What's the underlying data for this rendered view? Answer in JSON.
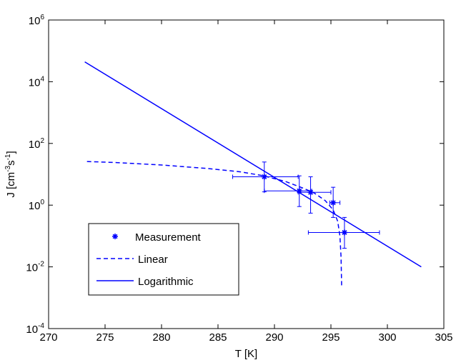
{
  "chart_data": {
    "type": "line",
    "xlabel": "T [K]",
    "ylabel": {
      "base": "J [cm",
      "exp1": "-3",
      "mid": "s",
      "exp2": "-1",
      "end": "]"
    },
    "xlim": [
      270,
      305
    ],
    "ylim": [
      0.0001,
      1000000
    ],
    "yscale": "log",
    "xticks": [
      "270",
      "275",
      "280",
      "285",
      "290",
      "295",
      "300",
      "305"
    ],
    "yticks": [
      {
        "base": "10",
        "exp": "-4"
      },
      {
        "base": "10",
        "exp": "-2"
      },
      {
        "base": "10",
        "exp": "0"
      },
      {
        "base": "10",
        "exp": "2"
      },
      {
        "base": "10",
        "exp": "4"
      },
      {
        "base": "10",
        "exp": "6"
      }
    ],
    "grid": false,
    "legend_position": "bottom-left",
    "color": "#0000ff",
    "series": [
      {
        "name": "Measurement",
        "style": "markers-errorbars",
        "points": [
          {
            "x": 289.1,
            "y": 8.3,
            "xerr": [
              286.3,
              292.1
            ],
            "yerr": [
              2.7,
              25
            ]
          },
          {
            "x": 292.2,
            "y": 2.9,
            "xerr": [
              289.1,
              293.3
            ],
            "yerr": [
              0.9,
              8.9
            ]
          },
          {
            "x": 293.2,
            "y": 2.6,
            "xerr": [
              292.1,
              295.0
            ],
            "yerr": [
              0.55,
              8.3
            ]
          },
          {
            "x": 295.2,
            "y": 1.2,
            "xerr": [
              294.9,
              295.8
            ],
            "yerr": [
              0.4,
              3.8
            ]
          },
          {
            "x": 296.2,
            "y": 0.13,
            "xerr": [
              293.0,
              299.3
            ],
            "yerr": [
              0.04,
              0.4
            ]
          }
        ]
      },
      {
        "name": "Linear",
        "style": "dashed",
        "points": [
          {
            "x": 273.4,
            "y": 26
          },
          {
            "x": 276,
            "y": 24
          },
          {
            "x": 280,
            "y": 20
          },
          {
            "x": 284,
            "y": 15.5
          },
          {
            "x": 287,
            "y": 12
          },
          {
            "x": 289,
            "y": 9
          },
          {
            "x": 291,
            "y": 5.8
          },
          {
            "x": 292.5,
            "y": 3.6
          },
          {
            "x": 293.5,
            "y": 2.5
          },
          {
            "x": 294.5,
            "y": 1.4
          },
          {
            "x": 295.2,
            "y": 0.7
          },
          {
            "x": 295.6,
            "y": 0.3
          },
          {
            "x": 295.8,
            "y": 0.1
          },
          {
            "x": 295.9,
            "y": 0.02
          },
          {
            "x": 295.95,
            "y": 0.0023
          }
        ]
      },
      {
        "name": "Logarithmic",
        "style": "solid",
        "points": [
          {
            "x": 273.2,
            "y": 44000
          },
          {
            "x": 303.0,
            "y": 0.01
          }
        ]
      }
    ]
  }
}
